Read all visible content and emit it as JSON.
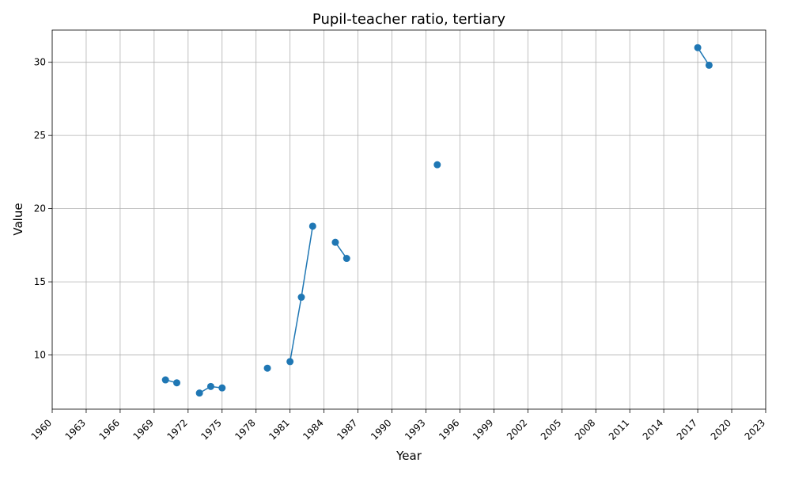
{
  "chart_data": {
    "type": "line",
    "title": "Pupil-teacher ratio, tertiary",
    "xlabel": "Year",
    "ylabel": "Value",
    "xlim": [
      1960,
      2023
    ],
    "ylim": [
      6.3,
      32.2
    ],
    "x_ticks": [
      "1960",
      "1963",
      "1966",
      "1969",
      "1972",
      "1975",
      "1978",
      "1981",
      "1984",
      "1987",
      "1990",
      "1993",
      "1996",
      "1999",
      "2002",
      "2005",
      "2008",
      "2011",
      "2014",
      "2017",
      "2020",
      "2023"
    ],
    "y_ticks": [
      "10",
      "15",
      "20",
      "25",
      "30"
    ],
    "grid": true,
    "series": [
      {
        "color": "#1f77b4",
        "points": [
          {
            "x": 1970,
            "y": 8.3
          },
          {
            "x": 1971,
            "y": 8.1
          },
          {
            "x": 1973,
            "y": 7.4
          },
          {
            "x": 1974,
            "y": 7.85
          },
          {
            "x": 1975,
            "y": 7.75
          },
          {
            "x": 1979,
            "y": 9.1
          },
          {
            "x": 1981,
            "y": 9.55
          },
          {
            "x": 1982,
            "y": 13.95
          },
          {
            "x": 1983,
            "y": 18.8
          },
          {
            "x": 1985,
            "y": 17.7
          },
          {
            "x": 1986,
            "y": 16.6
          },
          {
            "x": 1994,
            "y": 23.0
          },
          {
            "x": 2017,
            "y": 31.0
          },
          {
            "x": 2018,
            "y": 29.8
          }
        ]
      }
    ]
  }
}
